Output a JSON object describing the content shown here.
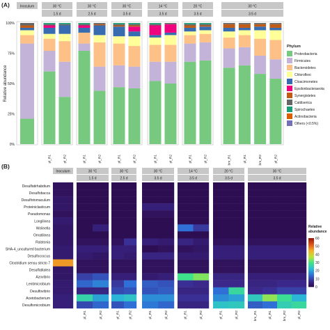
{
  "chart_data": [
    {
      "type": "bar",
      "panel_label": "(A)",
      "ylabel": "Relative abundance",
      "ylim": [
        0,
        100
      ],
      "y_ticks": [
        "0%",
        "25%",
        "50%",
        "75%",
        "100%"
      ],
      "legend_title": "Phylum",
      "legend_position": "right",
      "facets": [
        {
          "top": "Inoculum",
          "bottom": "",
          "samples": [
            ""
          ]
        },
        {
          "top": "30 °C",
          "bottom": "1.5 d",
          "samples": [
            "pl_R1",
            "pl_R2"
          ]
        },
        {
          "top": "30 °C",
          "bottom": "2.5 d",
          "samples": [
            "pl_R1",
            "pl_R2"
          ]
        },
        {
          "top": "30 °C",
          "bottom": "3.5 d",
          "samples": [
            "pl_R1",
            "pl_R2"
          ]
        },
        {
          "top": "14 °C",
          "bottom": "3.5 d",
          "samples": [
            "pl_R1",
            "pl_R2"
          ]
        },
        {
          "top": "20 °C",
          "bottom": "3.5 d",
          "samples": [
            "pl_R1",
            "pl_R2"
          ]
        },
        {
          "top": "30 °C",
          "bottom": "3.5 d",
          "samples": [
            "bm_R1",
            "pl_R1",
            "bm_R2",
            "pl_R2"
          ]
        }
      ],
      "series": [
        {
          "name": "Proteobacteria",
          "color": "#77c97f",
          "values": [
            21,
            60,
            39,
            77,
            44,
            47,
            46,
            52,
            50,
            68,
            69,
            63,
            65,
            58,
            54
          ]
        },
        {
          "name": "Firmicutes",
          "color": "#c3b3d8",
          "values": [
            62,
            17,
            29,
            6,
            20,
            18,
            18,
            16,
            18,
            15,
            15,
            16,
            15,
            15,
            16
          ]
        },
        {
          "name": "Bacteroidetes",
          "color": "#fdc086",
          "values": [
            7,
            10,
            17,
            9,
            20,
            18,
            17,
            14,
            14,
            7,
            7,
            9,
            10,
            14,
            16
          ]
        },
        {
          "name": "Chloroflexi",
          "color": "#ffff99",
          "values": [
            4,
            4,
            6,
            0,
            6,
            6,
            8,
            6,
            8,
            3,
            3,
            5,
            4,
            7,
            8
          ]
        },
        {
          "name": "Cloacimonetes",
          "color": "#386cb0",
          "values": [
            2,
            5,
            7,
            4,
            8,
            8,
            4,
            2,
            2,
            3,
            3,
            3,
            2,
            3,
            2
          ]
        },
        {
          "name": "Epsilonbacteraeota",
          "color": "#f0027f",
          "values": [
            0,
            2,
            0,
            2,
            0,
            0,
            4,
            8,
            7,
            0,
            0,
            0,
            0,
            0,
            0
          ]
        },
        {
          "name": "Synergistetes",
          "color": "#bf5b17",
          "values": [
            2,
            0,
            0,
            0,
            1,
            1,
            1,
            0,
            0,
            2,
            1,
            3,
            3,
            2,
            3
          ]
        },
        {
          "name": "Caldiserica",
          "color": "#666666",
          "values": [
            2,
            1,
            1,
            1,
            1,
            1,
            1,
            1,
            1,
            1,
            1,
            1,
            1,
            1,
            1
          ]
        },
        {
          "name": "Spirochaetes",
          "color": "#1b9e77",
          "values": [
            0,
            1,
            1,
            1,
            0,
            1,
            1,
            1,
            0,
            1,
            1,
            0,
            0,
            0,
            0
          ]
        },
        {
          "name": "Actinobacteria",
          "color": "#d95f02",
          "values": [
            0,
            0,
            0,
            0,
            0,
            0,
            0,
            0,
            0,
            0,
            0,
            0,
            0,
            0,
            0
          ]
        },
        {
          "name": "Others (<0.5%)",
          "color": "#7570b3",
          "values": [
            0,
            0,
            0,
            0,
            0,
            0,
            0,
            0,
            0,
            0,
            0,
            0,
            0,
            0,
            0
          ]
        }
      ]
    },
    {
      "type": "heatmap",
      "panel_label": "(B)",
      "legend_title": "Relative\nabundance",
      "legend_position": "right",
      "color_range": [
        0,
        60
      ],
      "legend_ticks": [
        "60",
        "50",
        "40",
        "30",
        "20",
        "10",
        "0"
      ],
      "legend_tick_values": [
        60,
        50,
        40,
        30,
        20,
        10,
        0
      ],
      "colors": [
        "#2c0a4a",
        "#3b2a8f",
        "#2f6fd6",
        "#2bbad6",
        "#3ee28a",
        "#b8e43a",
        "#f4b12a",
        "#e25a1b",
        "#9e1a0a"
      ],
      "genera": [
        "Desulfatirhabdium",
        "Desulfobacca",
        "Desulfotomaculum",
        "Proteiniclasticum",
        "Pseudomonas",
        "Longilinea",
        "Wolinella",
        "Ornatilinea",
        "Ralstonia",
        "SHA-4_uncultured bacterium",
        "Desulfococcus",
        "Clostridium sensu stricto 7",
        "Desulfatitalea",
        "Azovibrio",
        "Lentimicrobium",
        "Desulfovibrio",
        "Acetobacterium",
        "Desulfomicrobium"
      ],
      "matrix": [
        [
          2,
          1,
          1,
          1,
          1,
          1,
          1,
          1,
          1,
          1,
          1,
          1,
          1,
          1,
          1
        ],
        [
          2,
          1,
          1,
          1,
          1,
          1,
          1,
          1,
          1,
          1,
          1,
          1,
          1,
          1,
          1
        ],
        [
          3,
          1,
          1,
          1,
          1,
          1,
          1,
          1,
          1,
          1,
          1,
          1,
          1,
          1,
          1
        ],
        [
          3,
          1,
          1,
          1,
          1,
          5,
          5,
          1,
          1,
          1,
          1,
          1,
          1,
          1,
          1
        ],
        [
          2,
          1,
          1,
          1,
          1,
          2,
          2,
          1,
          1,
          1,
          1,
          1,
          1,
          1,
          1
        ],
        [
          4,
          1,
          1,
          1,
          1,
          1,
          1,
          1,
          1,
          1,
          1,
          1,
          1,
          1,
          1
        ],
        [
          3,
          1,
          5,
          1,
          1,
          1,
          1,
          15,
          9,
          1,
          1,
          1,
          1,
          1,
          1
        ],
        [
          3,
          1,
          1,
          1,
          1,
          1,
          1,
          1,
          1,
          1,
          1,
          1,
          1,
          1,
          1
        ],
        [
          3,
          2,
          2,
          2,
          8,
          5,
          4,
          6,
          4,
          2,
          2,
          2,
          2,
          2,
          2
        ],
        [
          4,
          5,
          5,
          5,
          5,
          1,
          2,
          2,
          3,
          5,
          5,
          5,
          5,
          5,
          5
        ],
        [
          4,
          4,
          3,
          5,
          4,
          6,
          6,
          4,
          4,
          5,
          5,
          5,
          5,
          5,
          5
        ],
        [
          47,
          2,
          2,
          2,
          2,
          2,
          2,
          2,
          2,
          2,
          2,
          2,
          2,
          2,
          2
        ],
        [
          3,
          2,
          2,
          2,
          2,
          2,
          2,
          2,
          2,
          2,
          2,
          2,
          2,
          2,
          2
        ],
        [
          3,
          10,
          12,
          5,
          5,
          4,
          5,
          30,
          34,
          6,
          6,
          5,
          5,
          5,
          5
        ],
        [
          4,
          14,
          17,
          9,
          15,
          13,
          12,
          8,
          7,
          7,
          7,
          6,
          6,
          7,
          7
        ],
        [
          4,
          6,
          6,
          11,
          12,
          12,
          13,
          6,
          6,
          15,
          28,
          7,
          8,
          10,
          10
        ],
        [
          5,
          27,
          20,
          22,
          24,
          18,
          18,
          8,
          8,
          18,
          20,
          25,
          35,
          29,
          22
        ],
        [
          5,
          11,
          14,
          12,
          15,
          16,
          14,
          6,
          6,
          24,
          25,
          13,
          15,
          26,
          28
        ]
      ]
    }
  ]
}
